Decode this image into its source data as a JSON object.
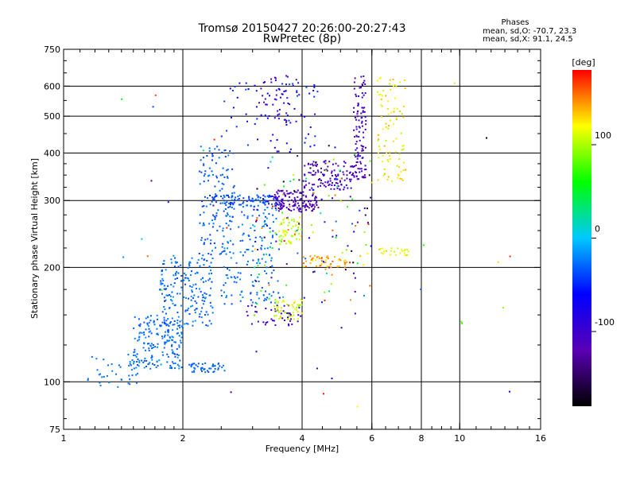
{
  "chart_data": {
    "type": "scatter",
    "title": "Tromsø 20150427 20:26:00-20:27:43",
    "subtitle": "RwPretec (8p)",
    "xlabel": "Frequency [MHz]",
    "ylabel": "Stationary phase Virtual Height [km]",
    "x_scale": "log",
    "y_scale": "log",
    "xlim": [
      1,
      16
    ],
    "ylim": [
      75,
      750
    ],
    "x_ticks": [
      1,
      2,
      4,
      6,
      8,
      10,
      16
    ],
    "x_tick_labels": [
      "1",
      "2",
      "4",
      "6",
      "8",
      "10",
      "16"
    ],
    "x_grid": [
      2,
      4,
      6,
      8,
      10
    ],
    "y_ticks": [
      75,
      100,
      200,
      300,
      400,
      500,
      600,
      750
    ],
    "y_tick_labels": [
      "75",
      "100",
      "200",
      "300",
      "400",
      "500",
      "600",
      "750"
    ],
    "y_grid": [
      100,
      200,
      300,
      400,
      500,
      600
    ],
    "grid": true,
    "stats": {
      "heading": "Phases",
      "line_o": "mean, sd,O: -70.7, 23.3",
      "line_x": "mean, sd,X:  91.1, 24.5"
    },
    "colorbar": {
      "label": "[deg]",
      "range": [
        -180,
        180
      ],
      "ticks": [
        100,
        0,
        -100
      ],
      "tick_labels": [
        "100",
        "0",
        "-100"
      ],
      "colors": [
        "#000000",
        "#5a00b4",
        "#0000ff",
        "#00c8ff",
        "#00ff00",
        "#ffff00",
        "#ff0000"
      ]
    },
    "clusters": [
      {
        "f": [
          1.15,
          1.55
        ],
        "h": [
          95,
          118
        ],
        "phase": [
          -30,
          -20
        ],
        "n": 40
      },
      {
        "f": [
          1.5,
          2.0
        ],
        "h": [
          108,
          150
        ],
        "phase": [
          -40,
          -15
        ],
        "n": 190
      },
      {
        "f": [
          1.75,
          2.4
        ],
        "h": [
          140,
          215
        ],
        "phase": [
          -40,
          -15
        ],
        "n": 190
      },
      {
        "f": [
          2.05,
          2.55
        ],
        "h": [
          106,
          112
        ],
        "phase": [
          -35,
          -25
        ],
        "n": 45
      },
      {
        "f": [
          2.2,
          2.7
        ],
        "h": [
          215,
          420
        ],
        "phase": [
          -45,
          -20
        ],
        "n": 130
      },
      {
        "f": [
          2.5,
          3.5
        ],
        "h": [
          160,
          300
        ],
        "phase": [
          -40,
          -15
        ],
        "n": 170
      },
      {
        "f": [
          2.3,
          3.5
        ],
        "h": [
          290,
          310
        ],
        "phase": [
          -50,
          -25
        ],
        "n": 90
      },
      {
        "f": [
          2.5,
          4.4
        ],
        "h": [
          400,
          620
        ],
        "phase": [
          -75,
          -35
        ],
        "n": 70
      },
      {
        "f": [
          3.1,
          4.0
        ],
        "h": [
          480,
          640
        ],
        "phase": [
          -120,
          -85
        ],
        "n": 45
      },
      {
        "f": [
          2.9,
          4.0
        ],
        "h": [
          140,
          160
        ],
        "phase": [
          -115,
          -85
        ],
        "n": 45
      },
      {
        "f": [
          3.4,
          4.4
        ],
        "h": [
          280,
          320
        ],
        "phase": [
          -125,
          -100
        ],
        "n": 130
      },
      {
        "f": [
          4.0,
          5.4
        ],
        "h": [
          320,
          380
        ],
        "phase": [
          -120,
          -90
        ],
        "n": 120
      },
      {
        "f": [
          5.4,
          5.8
        ],
        "h": [
          340,
          640
        ],
        "phase": [
          -125,
          -90
        ],
        "n": 110
      },
      {
        "f": [
          3.4,
          4.0
        ],
        "h": [
          145,
          165
        ],
        "phase": [
          90,
          130
        ],
        "n": 50
      },
      {
        "f": [
          3.5,
          4.0
        ],
        "h": [
          230,
          270
        ],
        "phase": [
          90,
          130
        ],
        "n": 55
      },
      {
        "f": [
          4.0,
          5.2
        ],
        "h": [
          200,
          215
        ],
        "phase": [
          120,
          160
        ],
        "n": 50
      },
      {
        "f": [
          6.2,
          7.3
        ],
        "h": [
          330,
          640
        ],
        "phase": [
          100,
          140
        ],
        "n": 90
      },
      {
        "f": [
          6.2,
          7.5
        ],
        "h": [
          215,
          225
        ],
        "phase": [
          100,
          130
        ],
        "n": 25
      },
      {
        "f": [
          3.0,
          6.0
        ],
        "h": [
          160,
          420
        ],
        "phase": [
          -180,
          180
        ],
        "n": 150
      },
      {
        "f": [
          1.4,
          14
        ],
        "h": [
          85,
          640
        ],
        "phase": [
          -180,
          180
        ],
        "n": 40
      }
    ]
  }
}
